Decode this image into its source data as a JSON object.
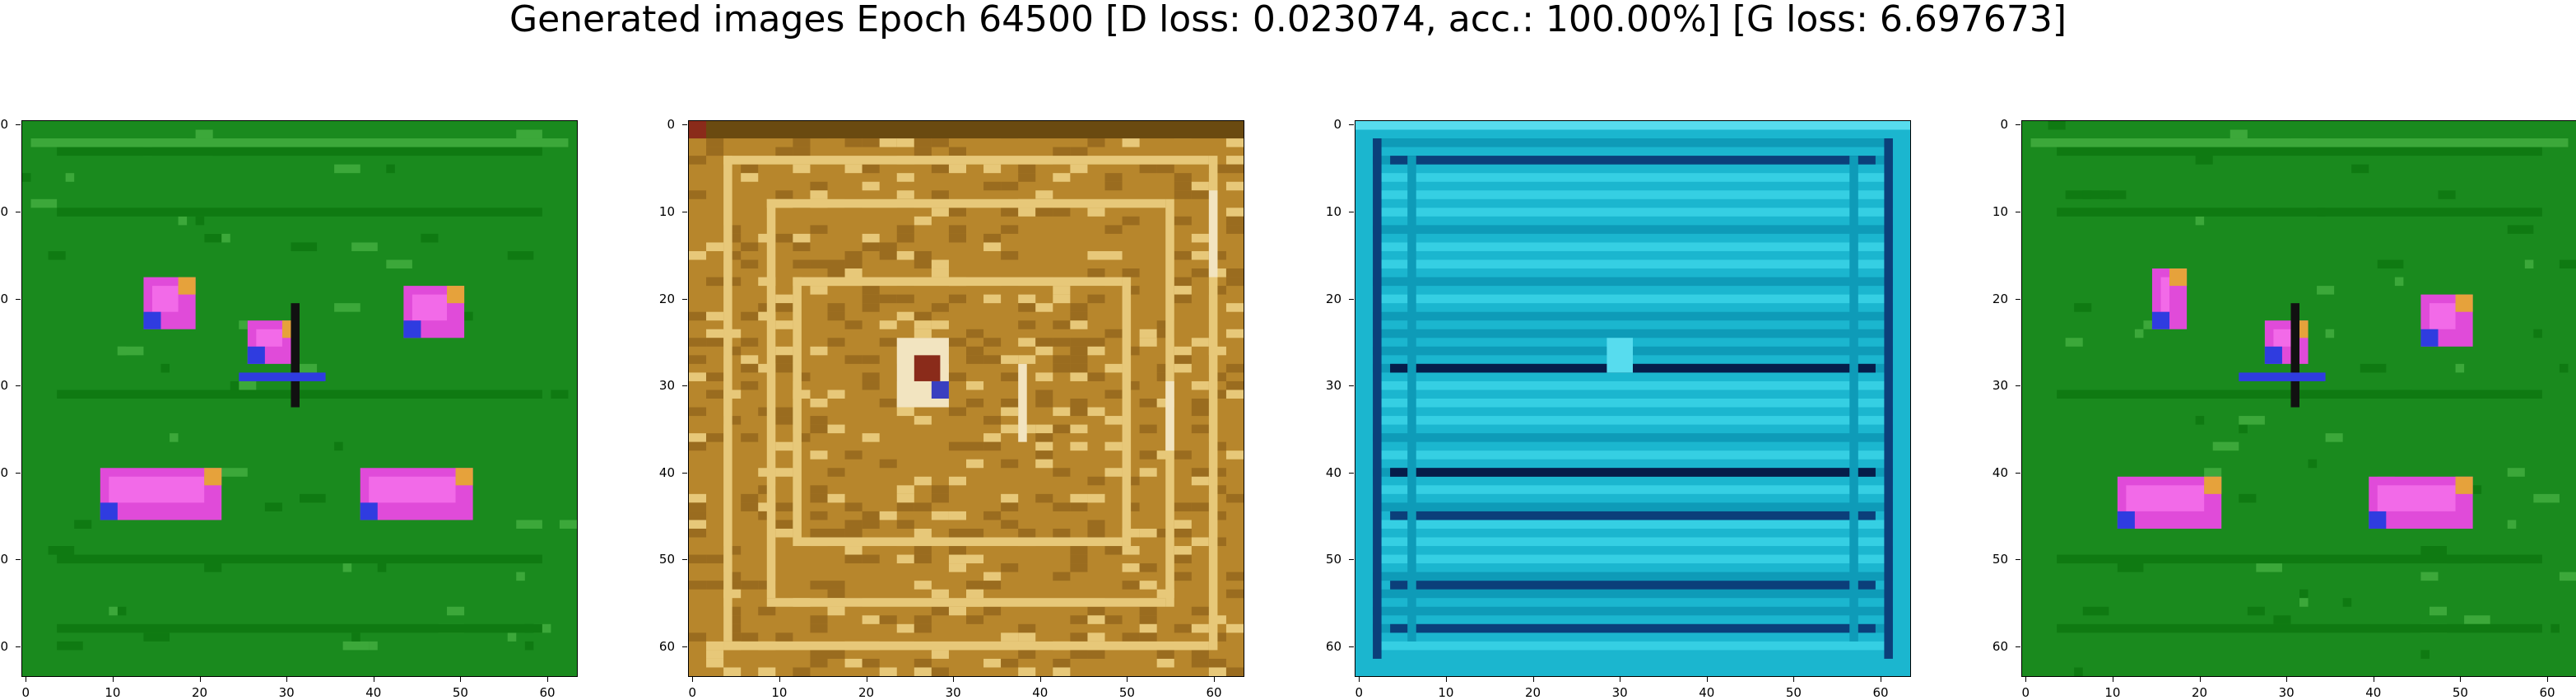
{
  "figure": {
    "title": "Generated images Epoch 64500 [D loss: 0.023074, acc.: 100.00%] [G loss: 6.697673]"
  },
  "axis": {
    "ticks": [
      "0",
      "10",
      "20",
      "30",
      "40",
      "50",
      "60"
    ],
    "tick_values": [
      0,
      10,
      20,
      30,
      40,
      50,
      60
    ],
    "range": [
      -0.5,
      63.5
    ]
  },
  "panels": [
    {
      "id": "green-figures",
      "palette": [
        "#1a8a1e",
        "#0f7a12",
        "#3ca83a",
        "#e04bd9",
        "#f26ae8",
        "#2f3ce0",
        "#e6a23b"
      ]
    },
    {
      "id": "golden-texture",
      "palette": [
        "#b7862c",
        "#9a6c1f",
        "#d4a548",
        "#e7c879",
        "#6a4a10",
        "#f2e4c0",
        "#8a2b1a"
      ]
    },
    {
      "id": "cyan-stripes",
      "palette": [
        "#1bb6cf",
        "#0e9bb8",
        "#35cfe3",
        "#0b3f7a",
        "#061d4a",
        "#57dcee",
        "#13a7c3"
      ]
    },
    {
      "id": "green-figures-2",
      "palette": [
        "#1a8a1e",
        "#0f7a12",
        "#3ca83a",
        "#e04bd9",
        "#f26ae8",
        "#2f3ce0",
        "#e6a23b"
      ]
    }
  ]
}
